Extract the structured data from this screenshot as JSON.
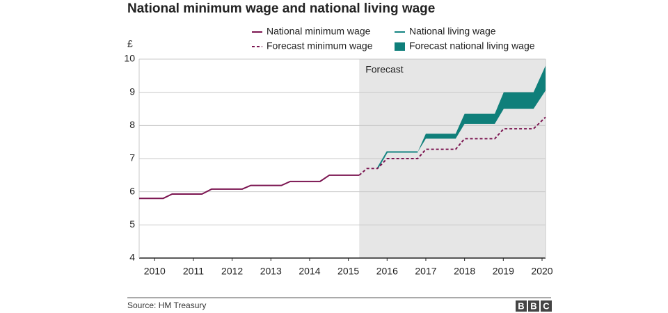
{
  "chart_data": {
    "type": "line",
    "title": "National minimum wage and national living wage",
    "y_label": "£",
    "annotation": "Forecast",
    "forecast_start": 2015.28,
    "source": "Source: HM Treasury",
    "logo": [
      "B",
      "B",
      "C"
    ],
    "xlim": [
      2009.6,
      2020.09
    ],
    "xticks": [
      2010,
      2011,
      2012,
      2013,
      2014,
      2015,
      2016,
      2017,
      2018,
      2019,
      2020
    ],
    "ylim": [
      4,
      10
    ],
    "yticks": [
      4,
      5,
      6,
      7,
      8,
      9,
      10
    ],
    "grid": true,
    "series": [
      {
        "name": "National minimum wage",
        "color": "#7b1450",
        "style": "solid",
        "x": [
          2009.6,
          2010.22,
          2010.45,
          2011.22,
          2011.47,
          2012.26,
          2012.48,
          2013.27,
          2013.5,
          2014.27,
          2014.51,
          2015.28
        ],
        "values": [
          5.8,
          5.8,
          5.93,
          5.93,
          6.08,
          6.08,
          6.19,
          6.19,
          6.31,
          6.31,
          6.5,
          6.5
        ]
      },
      {
        "name": "National living wage",
        "color": "#148482",
        "style": "solid",
        "x": [
          2015.75,
          2016.0,
          2016.79
        ],
        "values": [
          6.7,
          7.2,
          7.2
        ]
      },
      {
        "name": "Forecast minimum wage",
        "color": "#7b1450",
        "style": "dashed",
        "x": [
          2015.28,
          2015.48,
          2015.75,
          2016.0,
          2016.79,
          2017.0,
          2017.77,
          2018.0,
          2018.78,
          2019.01,
          2019.78,
          2020.09
        ],
        "values": [
          6.5,
          6.7,
          6.7,
          7.0,
          7.0,
          7.28,
          7.28,
          7.6,
          7.6,
          7.9,
          7.9,
          8.25
        ]
      },
      {
        "name": "Forecast national living wage",
        "color": "#0f7f7a",
        "style": "band",
        "x": [
          2016.79,
          2017.0,
          2017.77,
          2018.0,
          2018.78,
          2019.01,
          2019.78,
          2020.09
        ],
        "lower": [
          7.2,
          7.6,
          7.6,
          8.05,
          8.05,
          8.5,
          8.5,
          9.05
        ],
        "upper": [
          7.2,
          7.75,
          7.75,
          8.35,
          8.35,
          9.0,
          9.0,
          9.8
        ]
      }
    ]
  }
}
